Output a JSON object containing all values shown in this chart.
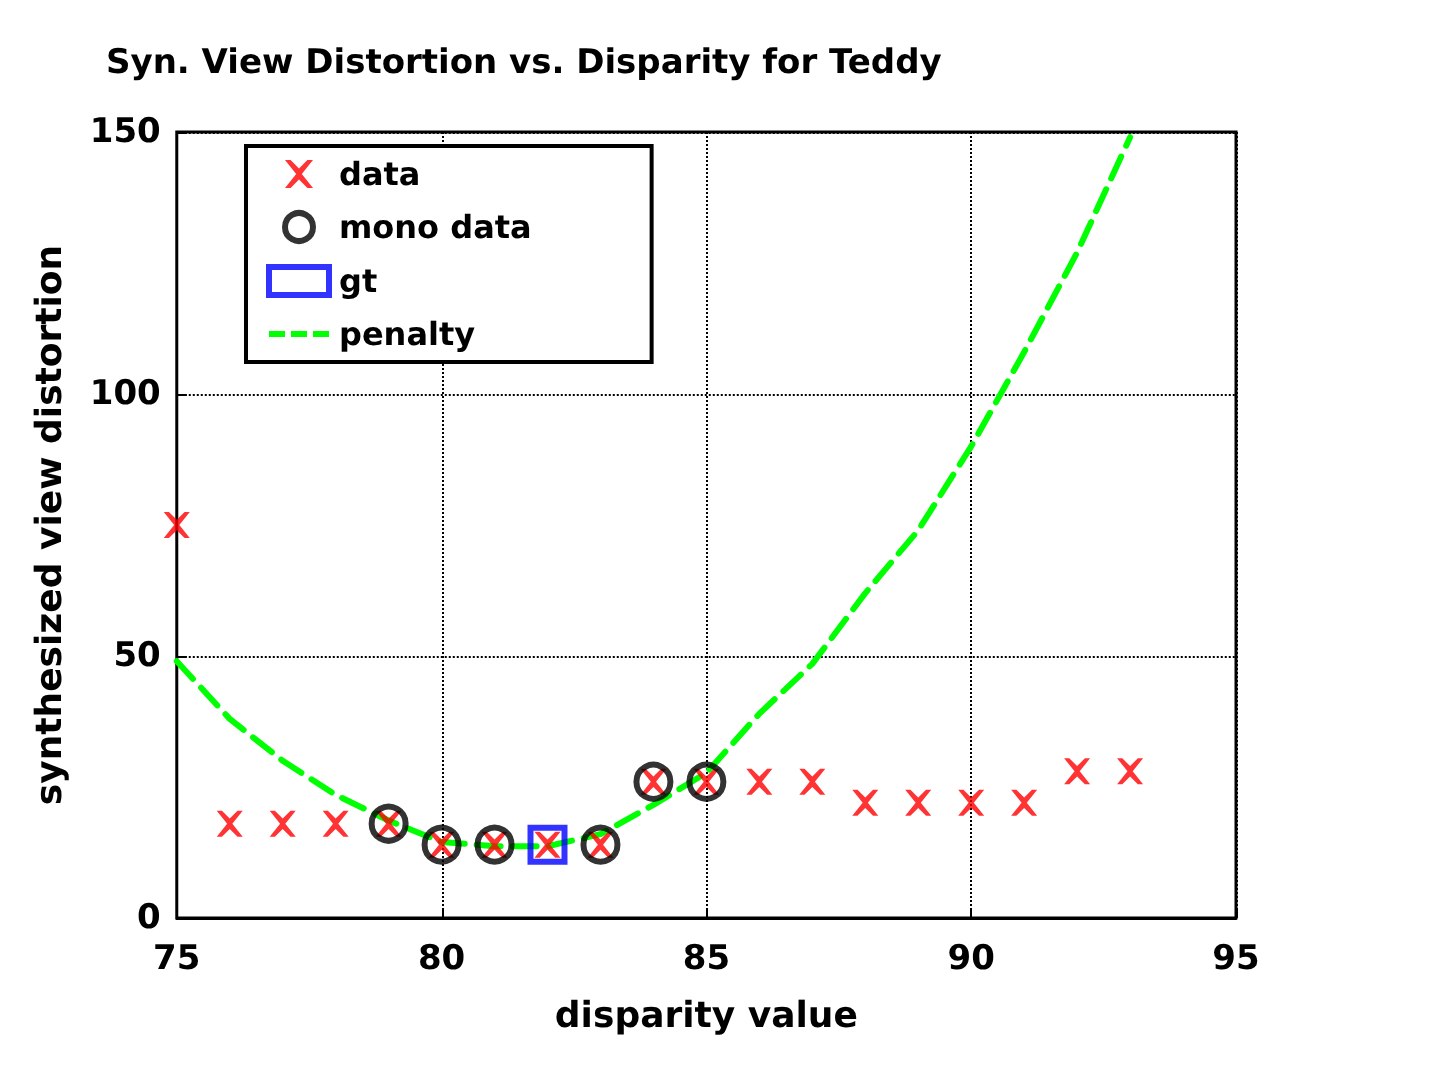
{
  "chart_data": {
    "type": "scatter",
    "title": "Syn. View Distortion vs. Disparity for Teddy",
    "xlabel": "disparity value",
    "ylabel": "synthesized view distortion",
    "series": [
      {
        "name": "data",
        "marker": "cross",
        "color": "#ff0000",
        "x": [
          75,
          76,
          77,
          78,
          79,
          80,
          81,
          82,
          83,
          84,
          85,
          86,
          87,
          88,
          89,
          90,
          91,
          92,
          93
        ],
        "values": [
          75,
          18,
          18,
          18,
          18,
          14,
          14,
          14,
          14,
          26,
          26,
          26,
          26,
          22,
          22,
          22,
          22,
          28,
          28
        ]
      },
      {
        "name": "mono data",
        "marker": "circle",
        "color": "#000000",
        "x": [
          79,
          80,
          81,
          83,
          84,
          85
        ],
        "values": [
          18,
          14,
          14,
          14,
          26,
          26
        ]
      },
      {
        "name": "gt",
        "marker": "square",
        "color": "#0000ff",
        "x": [
          82
        ],
        "values": [
          14
        ]
      },
      {
        "name": "penalty",
        "type": "line",
        "marker": "none",
        "line_style": "dashed",
        "color": "#00ff00",
        "x": [
          75,
          76,
          77,
          78,
          79,
          80,
          81,
          82,
          83,
          84,
          85,
          86,
          87,
          88,
          89,
          90,
          91,
          92,
          93
        ],
        "values": [
          49,
          38,
          30,
          23.5,
          18.6,
          14.5,
          13.7,
          13.7,
          16,
          21.6,
          27.7,
          39,
          48.5,
          62,
          74,
          90,
          108,
          127,
          149
        ]
      }
    ],
    "xlim": [
      75,
      95
    ],
    "xticks": [
      75,
      80,
      85,
      90,
      95
    ],
    "ylim": [
      0,
      150
    ],
    "yticks": [
      0,
      50,
      100,
      150
    ],
    "grid": true,
    "legend": "top left"
  }
}
